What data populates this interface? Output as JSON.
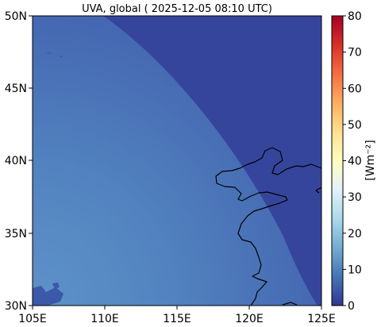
{
  "title": "UVA, global ( 2025-12-05 08:10 UTC)",
  "lat_ticks": [
    "50N",
    "45N",
    "40N",
    "35N",
    "30N"
  ],
  "lon_ticks": [
    "105E",
    "110E",
    "115E",
    "120E",
    "125E"
  ],
  "colorbar": {
    "ticks": [
      "80",
      "70",
      "60",
      "50",
      "40",
      "30",
      "20",
      "10",
      "0"
    ],
    "label": "[Wm⁻²]",
    "range": [
      0,
      80
    ],
    "colormap": "RdYlBu_r"
  },
  "extent": {
    "lon": [
      105,
      125
    ],
    "lat": [
      30,
      50
    ]
  },
  "colors": {
    "field_low": "#3a4fa6",
    "field_high": "#5b8ec6",
    "coastline": "#000000"
  }
}
